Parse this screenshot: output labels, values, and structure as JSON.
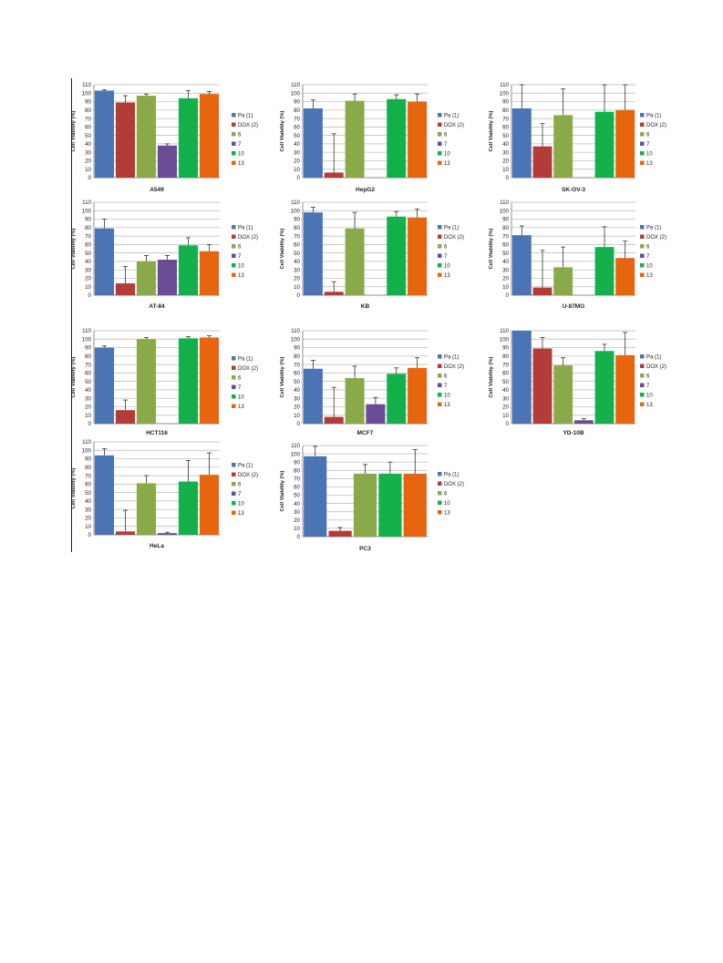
{
  "legend_labels": [
    "Pa (1)",
    "DOX (2)",
    "6",
    "7",
    "10",
    "13"
  ],
  "colors": [
    "#4a74b3",
    "#b33c39",
    "#8aaa4a",
    "#6a4c94",
    "#14b04c",
    "#e8650f"
  ],
  "ylabel": "Cell Viability (%)",
  "chart_data": [
    {
      "type": "bar",
      "title": "A549",
      "ylim": [
        0,
        110
      ],
      "ticks": [
        0,
        10,
        20,
        30,
        40,
        50,
        60,
        70,
        80,
        90,
        100,
        110
      ],
      "categories": [
        "Pa (1)",
        "DOX (2)",
        "6",
        "7",
        "10",
        "13"
      ],
      "values": [
        103,
        89,
        97,
        38,
        94,
        99
      ],
      "errors": [
        1,
        8,
        2,
        2,
        9,
        3
      ]
    },
    {
      "type": "bar",
      "title": "HepG2",
      "ylim": [
        0,
        110
      ],
      "ticks": [
        0,
        10,
        20,
        30,
        40,
        50,
        60,
        70,
        80,
        90,
        100,
        110
      ],
      "categories": [
        "Pa (1)",
        "DOX (2)",
        "6",
        "7",
        "10",
        "13"
      ],
      "values": [
        82,
        6,
        91,
        0,
        93,
        90
      ],
      "errors": [
        10,
        46,
        8,
        0,
        5,
        9
      ]
    },
    {
      "type": "bar",
      "title": "SK-OV-3",
      "ylim": [
        0,
        110
      ],
      "ticks": [
        0,
        10,
        20,
        30,
        40,
        50,
        60,
        70,
        80,
        90,
        100,
        110
      ],
      "categories": [
        "Pa (1)",
        "DOX (2)",
        "6",
        "7",
        "10",
        "13"
      ],
      "values": [
        82,
        37,
        74,
        0,
        78,
        80
      ],
      "errors": [
        28,
        27,
        31,
        0,
        32,
        30
      ]
    },
    {
      "type": "bar",
      "title": "AT-84",
      "ylim": [
        0,
        110
      ],
      "ticks": [
        0,
        10,
        20,
        30,
        40,
        50,
        60,
        70,
        80,
        90,
        100,
        110
      ],
      "categories": [
        "Pa (1)",
        "DOX (2)",
        "6",
        "7",
        "10",
        "13"
      ],
      "values": [
        79,
        14,
        40,
        42,
        59,
        52
      ],
      "errors": [
        11,
        20,
        7,
        5,
        9,
        8
      ]
    },
    {
      "type": "bar",
      "title": "KB",
      "ylim": [
        0,
        110
      ],
      "ticks": [
        0,
        10,
        20,
        30,
        40,
        50,
        60,
        70,
        80,
        90,
        100,
        110
      ],
      "categories": [
        "Pa (1)",
        "DOX (2)",
        "6",
        "7",
        "10",
        "13"
      ],
      "values": [
        98,
        4,
        79,
        0,
        93,
        92
      ],
      "errors": [
        6,
        12,
        19,
        0,
        6,
        10
      ]
    },
    {
      "type": "bar",
      "title": "U-87MG",
      "ylim": [
        0,
        110
      ],
      "ticks": [
        0,
        10,
        20,
        30,
        40,
        50,
        60,
        70,
        80,
        90,
        100,
        110
      ],
      "categories": [
        "Pa (1)",
        "DOX (2)",
        "6",
        "7",
        "10",
        "13"
      ],
      "values": [
        71,
        9,
        33,
        0,
        57,
        44
      ],
      "errors": [
        11,
        44,
        24,
        0,
        24,
        20
      ]
    },
    {
      "type": "bar",
      "title": "HCT116",
      "ylim": [
        0,
        110
      ],
      "ticks": [
        0,
        10,
        20,
        30,
        40,
        50,
        60,
        70,
        80,
        90,
        100,
        110
      ],
      "categories": [
        "Pa (1)",
        "DOX (2)",
        "6",
        "7",
        "10",
        "13"
      ],
      "values": [
        90,
        16,
        100,
        0,
        101,
        102
      ],
      "errors": [
        2,
        12,
        2,
        0,
        2,
        2
      ]
    },
    {
      "type": "bar",
      "title": "MCF7",
      "ylim": [
        0,
        110
      ],
      "ticks": [
        0,
        10,
        20,
        30,
        40,
        50,
        60,
        70,
        80,
        90,
        100,
        110
      ],
      "categories": [
        "Pa (1)",
        "DOX (2)",
        "6",
        "7",
        "10",
        "13"
      ],
      "values": [
        65,
        8,
        54,
        23,
        59,
        66
      ],
      "errors": [
        10,
        35,
        14,
        8,
        7,
        12
      ]
    },
    {
      "type": "bar",
      "title": "YD-10B",
      "ylim": [
        0,
        110
      ],
      "ticks": [
        0,
        10,
        20,
        30,
        40,
        50,
        60,
        70,
        80,
        90,
        100,
        110
      ],
      "categories": [
        "Pa (1)",
        "DOX (2)",
        "6",
        "7",
        "10",
        "13"
      ],
      "values": [
        110,
        89,
        69,
        4,
        86,
        81
      ],
      "errors": [
        0,
        13,
        9,
        2,
        8,
        27
      ]
    },
    {
      "type": "bar",
      "title": "HeLa",
      "ylim": [
        0,
        110
      ],
      "ticks": [
        0,
        10,
        20,
        30,
        40,
        50,
        60,
        70,
        80,
        90,
        100,
        110
      ],
      "categories": [
        "Pa (1)",
        "DOX (2)",
        "6",
        "7",
        "10",
        "13"
      ],
      "values": [
        94,
        4,
        61,
        2,
        63,
        71
      ],
      "errors": [
        8,
        25,
        9,
        1,
        25,
        26
      ]
    },
    {
      "type": "bar",
      "title": "PC3",
      "ylim": [
        0,
        110
      ],
      "ticks": [
        0,
        10,
        20,
        30,
        40,
        50,
        60,
        70,
        80,
        90,
        100,
        110
      ],
      "categories": [
        "Pa (1)",
        "DOX (2)",
        "6",
        "10",
        "13"
      ],
      "values": [
        97,
        7,
        76,
        76,
        76
      ],
      "errors": [
        12,
        4,
        11,
        14,
        29
      ]
    }
  ]
}
